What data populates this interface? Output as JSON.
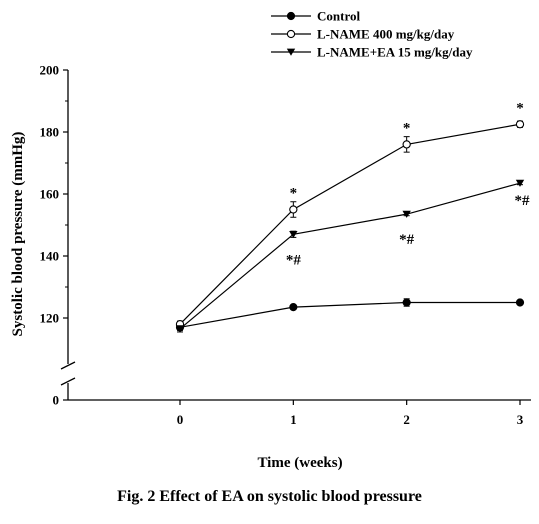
{
  "caption": "Fig. 2 Effect of EA on systolic blood pressure",
  "chart_data": {
    "type": "line",
    "xlabel": "Time (weeks)",
    "ylabel": "Systolic blood pressure (mmHg)",
    "x": [
      0,
      1,
      2,
      3
    ],
    "x_ticks": [
      "0",
      "1",
      "2",
      "3"
    ],
    "y_ticks": [
      "0",
      "120",
      "140",
      "160",
      "180",
      "200"
    ],
    "ylim": [
      0,
      200
    ],
    "axis_break": true,
    "legend_position": "top-right",
    "series": [
      {
        "name": "Control",
        "marker": "filled-circle",
        "values": [
          117,
          123.5,
          125,
          125
        ],
        "errors": [
          1,
          0.5,
          1.2,
          0.5
        ]
      },
      {
        "name": "L-NAME 400 mg/kg/day",
        "marker": "open-circle",
        "values": [
          118,
          155,
          176,
          182.5
        ],
        "errors": [
          1,
          2.5,
          2.5,
          1
        ]
      },
      {
        "name": "L-NAME+EA 15 mg/kg/day",
        "marker": "filled-triangle-down",
        "values": [
          116.5,
          147,
          153.5,
          163.5
        ],
        "errors": [
          1,
          1,
          0.5,
          0.5
        ]
      }
    ],
    "annotations": [
      {
        "x": 1,
        "text": "*",
        "series": 1
      },
      {
        "x": 2,
        "text": "*",
        "series": 1
      },
      {
        "x": 3,
        "text": "*",
        "series": 1
      },
      {
        "x": 1,
        "text": "*#",
        "series": 2
      },
      {
        "x": 2,
        "text": "*#",
        "series": 2
      },
      {
        "x": 3,
        "text": "*#",
        "series": 2
      }
    ]
  }
}
